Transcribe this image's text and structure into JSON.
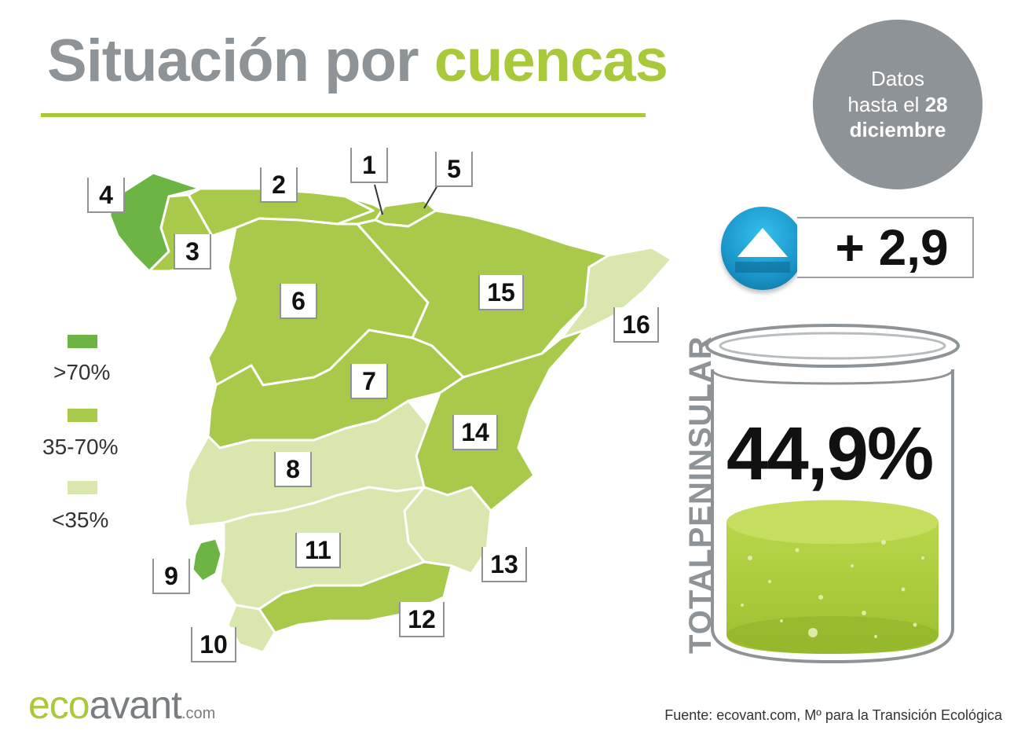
{
  "title": {
    "part1": "Situación por",
    "part2": "cuencas"
  },
  "date_note": {
    "line1": "Datos",
    "line2_prefix": "hasta el",
    "day": "28",
    "month": "diciembre"
  },
  "change": {
    "value": "+ 2,9",
    "icon": "up-arrow-icon",
    "direction": "up"
  },
  "total": {
    "label": "TOTALPENINSULAR",
    "value": "44,9%",
    "fill_fraction": 0.449
  },
  "legend": [
    {
      "label": ">70%",
      "color": "#6cb544"
    },
    {
      "label": "35-70%",
      "color": "#a9c94a"
    },
    {
      "label": "<35%",
      "color": "#d9e6ad"
    }
  ],
  "basins": [
    {
      "id": "1",
      "class": "35-70%"
    },
    {
      "id": "2",
      "class": "35-70%"
    },
    {
      "id": "3",
      "class": "35-70%"
    },
    {
      "id": "4",
      "class": ">70%"
    },
    {
      "id": "5",
      "class": "35-70%"
    },
    {
      "id": "6",
      "class": "35-70%"
    },
    {
      "id": "7",
      "class": "35-70%"
    },
    {
      "id": "8",
      "class": "<35%"
    },
    {
      "id": "9",
      "class": ">70%"
    },
    {
      "id": "10",
      "class": "<35%"
    },
    {
      "id": "11",
      "class": "<35%"
    },
    {
      "id": "12",
      "class": "35-70%"
    },
    {
      "id": "13",
      "class": "<35%"
    },
    {
      "id": "14",
      "class": "35-70%"
    },
    {
      "id": "15",
      "class": "35-70%"
    },
    {
      "id": "16",
      "class": "<35%"
    }
  ],
  "logo": {
    "eco": "eco",
    "avant": "avant",
    "domain": ".com"
  },
  "source": "Fuente: ecovant.com, Mº para la Transición Ecológica"
}
